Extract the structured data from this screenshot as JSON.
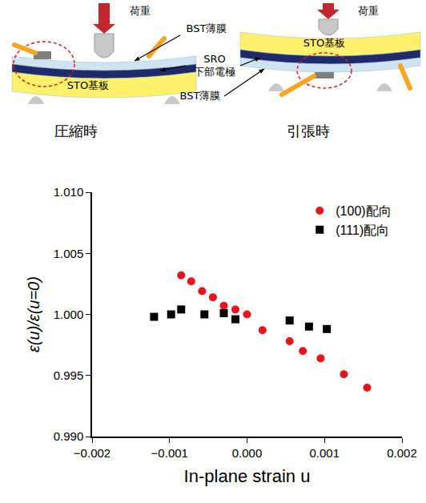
{
  "diagram": {
    "panels": [
      {
        "caption": "圧縮時",
        "load": "荷重",
        "substrate": "STO基板"
      },
      {
        "caption": "引張時",
        "load": "荷重",
        "substrate": "STO基板"
      }
    ],
    "labels": {
      "film_top": "BST薄膜",
      "electrode": [
        "SRO",
        "下部電極"
      ],
      "film_bottom": "BST薄膜"
    }
  },
  "chart_data": {
    "type": "scatter",
    "x_label": "In-plane strain u",
    "y_label": "ε(u)/ε(u=0)",
    "xlim": [
      -0.002,
      0.002
    ],
    "xticks": [
      {
        "value": -0.002,
        "label": "−0.002"
      },
      {
        "value": -0.001,
        "label": "−0.001"
      },
      {
        "value": 0,
        "label": "0.000"
      },
      {
        "value": 0.001,
        "label": "0.001"
      },
      {
        "value": 0.002,
        "label": "0.002"
      }
    ],
    "ylim": [
      0.99,
      1.01
    ],
    "yticks": [
      {
        "value": 0.99,
        "label": "0.990"
      },
      0.995,
      {
        "value": 1,
        "label": "1.000"
      },
      1.005,
      {
        "value": 1.01,
        "label": "1.010"
      }
    ],
    "grid": false,
    "legend": "upper right",
    "series": [
      {
        "name": "(100)配向",
        "color": "#e8141c",
        "marker": "circle",
        "x": [
          -0.00085,
          -0.00072,
          -0.00058,
          -0.00044,
          -0.0003,
          -0.00015,
          0,
          0.0002,
          0.00055,
          0.00072,
          0.00095,
          0.00125,
          0.00155
        ],
        "values": [
          1.0032,
          1.0027,
          1.0019,
          1.0014,
          1.0007,
          1.0004,
          1.0,
          0.9987,
          0.9978,
          0.997,
          0.9964,
          0.9951,
          0.994
        ]
      },
      {
        "name": "(111)配向",
        "color": "#000000",
        "marker": "square",
        "x": [
          -0.0012,
          -0.00098,
          -0.00085,
          -0.00055,
          -0.0003,
          -0.00015,
          0.00055,
          0.0008,
          0.00103
        ],
        "values": [
          0.9998,
          1.0,
          1.0004,
          1.0,
          1.0001,
          0.9996,
          0.9995,
          0.999,
          0.9988
        ]
      }
    ]
  }
}
